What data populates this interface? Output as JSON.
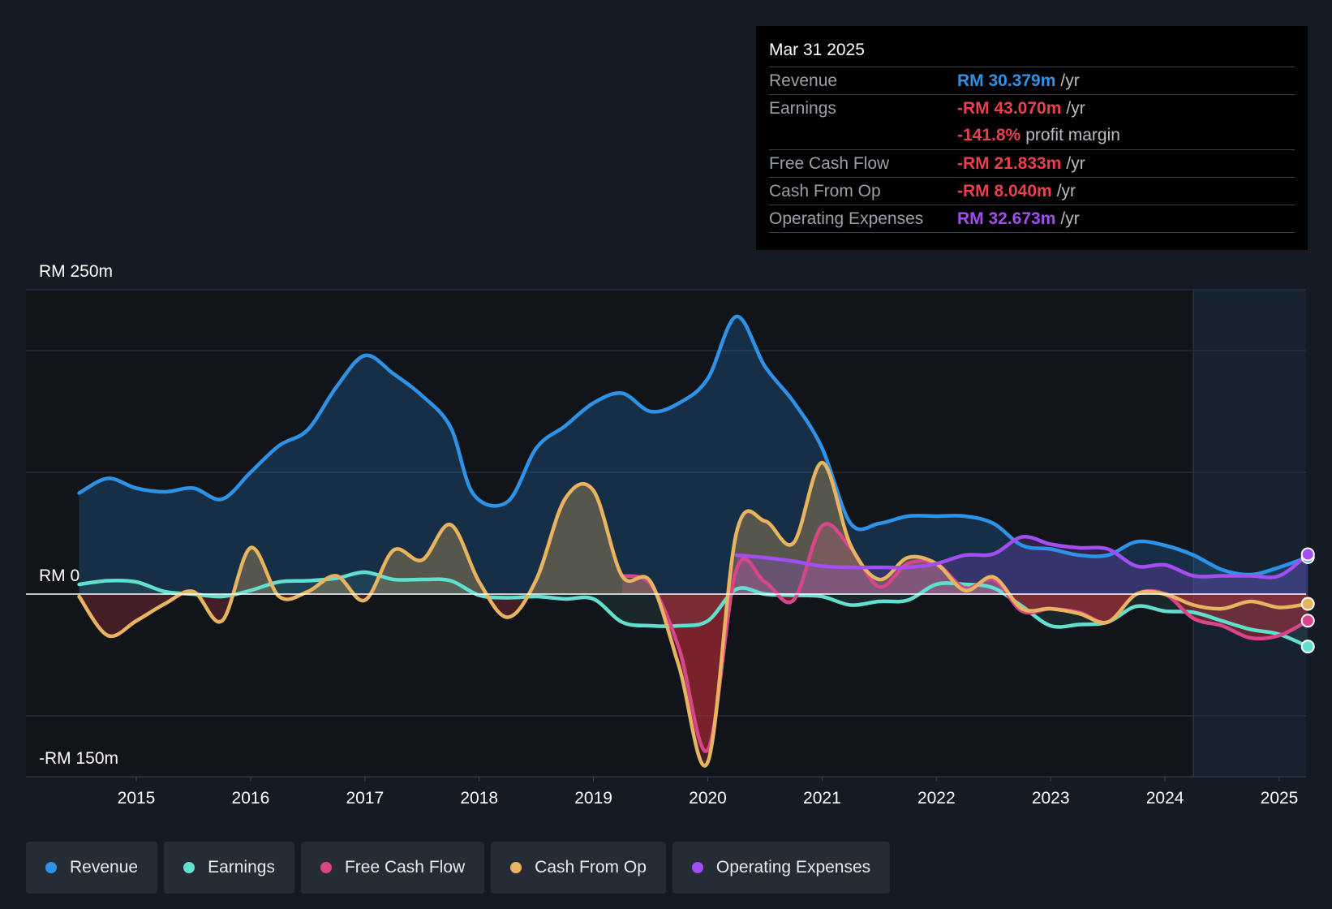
{
  "tooltip": {
    "date": "Mar 31 2025",
    "rows": [
      {
        "label": "Revenue",
        "value": "RM 30.379m",
        "unit": "/yr",
        "color": "#2e93e6"
      },
      {
        "label": "Earnings",
        "value": "-RM 43.070m",
        "unit": "/yr",
        "color": "#e8404f"
      },
      {
        "label": "",
        "value": "-141.8%",
        "unit": "profit margin",
        "color": "#e8404f"
      },
      {
        "label": "Free Cash Flow",
        "value": "-RM 21.833m",
        "unit": "/yr",
        "color": "#e8404f"
      },
      {
        "label": "Cash From Op",
        "value": "-RM 8.040m",
        "unit": "/yr",
        "color": "#e8404f"
      },
      {
        "label": "Operating Expenses",
        "value": "RM 32.673m",
        "unit": "/yr",
        "color": "#a24ef0"
      }
    ]
  },
  "legend": [
    {
      "name": "Revenue",
      "color": "#2e93e6"
    },
    {
      "name": "Earnings",
      "color": "#62e0cf"
    },
    {
      "name": "Free Cash Flow",
      "color": "#d8458a"
    },
    {
      "name": "Cash From Op",
      "color": "#e9b460"
    },
    {
      "name": "Operating Expenses",
      "color": "#a24ef0"
    }
  ],
  "chart_data": {
    "type": "line",
    "title": "",
    "xlabel": "",
    "ylabel": "",
    "x_ticks": [
      "2015",
      "2016",
      "2017",
      "2018",
      "2019",
      "2020",
      "2021",
      "2022",
      "2023",
      "2024",
      "2025"
    ],
    "y_labels": [
      "RM 250m",
      "RM 0",
      "-RM 150m"
    ],
    "ylim": [
      -150,
      250
    ],
    "xlim": [
      2014.0,
      2025.25
    ],
    "forecast_start": 2024.25,
    "series": [
      {
        "name": "Revenue",
        "color": "#2e93e6",
        "fill": true,
        "points": [
          [
            2014.5,
            83
          ],
          [
            2014.75,
            95
          ],
          [
            2015.0,
            87
          ],
          [
            2015.25,
            84
          ],
          [
            2015.5,
            87
          ],
          [
            2015.75,
            78
          ],
          [
            2016.0,
            100
          ],
          [
            2016.25,
            122
          ],
          [
            2016.5,
            135
          ],
          [
            2016.75,
            170
          ],
          [
            2017.0,
            196
          ],
          [
            2017.25,
            181
          ],
          [
            2017.5,
            163
          ],
          [
            2017.75,
            137
          ],
          [
            2017.95,
            82
          ],
          [
            2018.25,
            76
          ],
          [
            2018.5,
            120
          ],
          [
            2018.75,
            138
          ],
          [
            2019.0,
            157
          ],
          [
            2019.25,
            165
          ],
          [
            2019.5,
            150
          ],
          [
            2019.75,
            157
          ],
          [
            2020.0,
            177
          ],
          [
            2020.25,
            228
          ],
          [
            2020.5,
            187
          ],
          [
            2020.75,
            158
          ],
          [
            2021.0,
            120
          ],
          [
            2021.25,
            58
          ],
          [
            2021.5,
            58
          ],
          [
            2021.75,
            64
          ],
          [
            2022.0,
            64
          ],
          [
            2022.25,
            64
          ],
          [
            2022.5,
            58
          ],
          [
            2022.75,
            40
          ],
          [
            2023.0,
            37
          ],
          [
            2023.25,
            32
          ],
          [
            2023.5,
            32
          ],
          [
            2023.75,
            43
          ],
          [
            2024.0,
            40
          ],
          [
            2024.25,
            32
          ],
          [
            2024.5,
            20
          ],
          [
            2024.75,
            16
          ],
          [
            2025.0,
            22
          ],
          [
            2025.25,
            30.4
          ]
        ]
      },
      {
        "name": "Earnings",
        "color": "#62e0cf",
        "fill": true,
        "points": [
          [
            2014.5,
            8
          ],
          [
            2014.75,
            11
          ],
          [
            2015.0,
            10
          ],
          [
            2015.25,
            2
          ],
          [
            2015.5,
            0
          ],
          [
            2015.75,
            -2
          ],
          [
            2016.0,
            3
          ],
          [
            2016.25,
            10
          ],
          [
            2016.5,
            11
          ],
          [
            2016.75,
            13
          ],
          [
            2017.0,
            18
          ],
          [
            2017.25,
            12
          ],
          [
            2017.5,
            12
          ],
          [
            2017.75,
            11
          ],
          [
            2018.0,
            -1
          ],
          [
            2018.25,
            -3
          ],
          [
            2018.5,
            -2
          ],
          [
            2018.75,
            -4
          ],
          [
            2019.0,
            -4
          ],
          [
            2019.25,
            -23
          ],
          [
            2019.5,
            -26
          ],
          [
            2019.75,
            -26
          ],
          [
            2020.0,
            -22
          ],
          [
            2020.25,
            4
          ],
          [
            2020.5,
            0
          ],
          [
            2020.75,
            -1
          ],
          [
            2021.0,
            -2
          ],
          [
            2021.25,
            -9
          ],
          [
            2021.5,
            -6
          ],
          [
            2021.75,
            -5
          ],
          [
            2022.0,
            8
          ],
          [
            2022.25,
            8
          ],
          [
            2022.5,
            5
          ],
          [
            2022.75,
            -10
          ],
          [
            2023.0,
            -26
          ],
          [
            2023.25,
            -25
          ],
          [
            2023.5,
            -23
          ],
          [
            2023.75,
            -10
          ],
          [
            2024.0,
            -14
          ],
          [
            2024.25,
            -15
          ],
          [
            2024.5,
            -22
          ],
          [
            2024.75,
            -29
          ],
          [
            2025.0,
            -33
          ],
          [
            2025.25,
            -43.1
          ]
        ]
      },
      {
        "name": "Free Cash Flow",
        "color": "#d8458a",
        "fill": true,
        "points": [
          [
            2019.25,
            15
          ],
          [
            2019.5,
            8
          ],
          [
            2019.75,
            -45
          ],
          [
            2020.0,
            -128
          ],
          [
            2020.25,
            20
          ],
          [
            2020.5,
            10
          ],
          [
            2020.75,
            -5
          ],
          [
            2021.0,
            56
          ],
          [
            2021.25,
            38
          ],
          [
            2021.5,
            6
          ],
          [
            2021.75,
            25
          ],
          [
            2022.0,
            25
          ],
          [
            2022.25,
            5
          ],
          [
            2022.5,
            12
          ],
          [
            2022.75,
            -14
          ],
          [
            2023.0,
            -12
          ],
          [
            2023.25,
            -15
          ],
          [
            2023.5,
            -23
          ],
          [
            2023.75,
            0
          ],
          [
            2024.0,
            0
          ],
          [
            2024.25,
            -20
          ],
          [
            2024.5,
            -26
          ],
          [
            2024.75,
            -36
          ],
          [
            2025.0,
            -34
          ],
          [
            2025.25,
            -21.8
          ]
        ]
      },
      {
        "name": "Cash From Op",
        "color": "#e9b460",
        "fill": true,
        "points": [
          [
            2014.5,
            -2
          ],
          [
            2014.75,
            -34
          ],
          [
            2015.0,
            -22
          ],
          [
            2015.25,
            -8
          ],
          [
            2015.5,
            2
          ],
          [
            2015.75,
            -22
          ],
          [
            2016.0,
            38
          ],
          [
            2016.25,
            -2
          ],
          [
            2016.5,
            2
          ],
          [
            2016.75,
            15
          ],
          [
            2017.0,
            -5
          ],
          [
            2017.25,
            36
          ],
          [
            2017.5,
            28
          ],
          [
            2017.75,
            57
          ],
          [
            2018.0,
            10
          ],
          [
            2018.25,
            -19
          ],
          [
            2018.5,
            12
          ],
          [
            2018.75,
            78
          ],
          [
            2019.0,
            85
          ],
          [
            2019.25,
            15
          ],
          [
            2019.5,
            10
          ],
          [
            2019.75,
            -60
          ],
          [
            2020.0,
            -138
          ],
          [
            2020.25,
            50
          ],
          [
            2020.5,
            60
          ],
          [
            2020.75,
            42
          ],
          [
            2021.0,
            108
          ],
          [
            2021.25,
            40
          ],
          [
            2021.5,
            12
          ],
          [
            2021.75,
            30
          ],
          [
            2022.0,
            25
          ],
          [
            2022.25,
            3
          ],
          [
            2022.5,
            14
          ],
          [
            2022.75,
            -12
          ],
          [
            2023.0,
            -12
          ],
          [
            2023.25,
            -16
          ],
          [
            2023.5,
            -23
          ],
          [
            2023.75,
            0
          ],
          [
            2024.0,
            0
          ],
          [
            2024.25,
            -9
          ],
          [
            2024.5,
            -12
          ],
          [
            2024.75,
            -6
          ],
          [
            2025.0,
            -11
          ],
          [
            2025.25,
            -8.0
          ]
        ]
      },
      {
        "name": "Operating Expenses",
        "color": "#a24ef0",
        "fill": true,
        "points": [
          [
            2020.25,
            32
          ],
          [
            2020.5,
            30
          ],
          [
            2020.75,
            27
          ],
          [
            2021.0,
            23
          ],
          [
            2021.25,
            22
          ],
          [
            2021.5,
            22
          ],
          [
            2021.75,
            22
          ],
          [
            2022.0,
            25
          ],
          [
            2022.25,
            32
          ],
          [
            2022.5,
            33
          ],
          [
            2022.75,
            47
          ],
          [
            2023.0,
            41
          ],
          [
            2023.25,
            38
          ],
          [
            2023.5,
            37
          ],
          [
            2023.75,
            23
          ],
          [
            2024.0,
            24
          ],
          [
            2024.25,
            15
          ],
          [
            2024.5,
            15
          ],
          [
            2024.75,
            15
          ],
          [
            2025.0,
            15
          ],
          [
            2025.25,
            32.7
          ]
        ]
      }
    ]
  }
}
